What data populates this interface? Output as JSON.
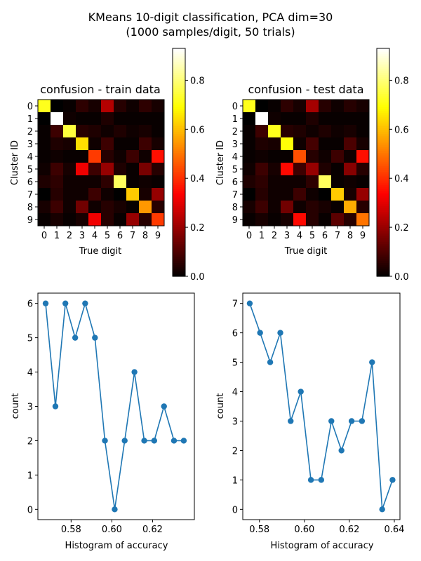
{
  "figure": {
    "title_line1": "KMeans 10-digit classification, PCA dim=30",
    "title_line2": "(1000 samples/digit, 50 trials)"
  },
  "colors": {
    "line": "#1f77b4",
    "colormap": "hot",
    "axis": "#000000",
    "background": "#ffffff"
  },
  "chart_data": [
    {
      "type": "heatmap",
      "title": "confusion - train data",
      "xlabel": "True digit",
      "ylabel": "Cluster ID",
      "x_ticks": [
        "0",
        "1",
        "2",
        "3",
        "4",
        "5",
        "6",
        "7",
        "8",
        "9"
      ],
      "y_ticks": [
        "0",
        "1",
        "2",
        "3",
        "4",
        "5",
        "6",
        "7",
        "8",
        "9"
      ],
      "values": [
        [
          0.72,
          0.0,
          0.01,
          0.06,
          0.03,
          0.24,
          0.05,
          0.02,
          0.06,
          0.03
        ],
        [
          0.0,
          0.93,
          0.02,
          0.01,
          0.01,
          0.04,
          0.01,
          0.01,
          0.01,
          0.01
        ],
        [
          0.01,
          0.08,
          0.75,
          0.05,
          0.04,
          0.02,
          0.04,
          0.02,
          0.03,
          0.01
        ],
        [
          0.01,
          0.04,
          0.03,
          0.65,
          0.02,
          0.08,
          0.01,
          0.01,
          0.08,
          0.03
        ],
        [
          0.01,
          0.02,
          0.01,
          0.01,
          0.42,
          0.05,
          0.02,
          0.08,
          0.02,
          0.36
        ],
        [
          0.02,
          0.08,
          0.03,
          0.32,
          0.08,
          0.2,
          0.04,
          0.01,
          0.16,
          0.05
        ],
        [
          0.04,
          0.06,
          0.02,
          0.02,
          0.02,
          0.06,
          0.78,
          0.01,
          0.02,
          0.01
        ],
        [
          0.0,
          0.05,
          0.02,
          0.02,
          0.08,
          0.02,
          0.0,
          0.62,
          0.03,
          0.2
        ],
        [
          0.03,
          0.08,
          0.02,
          0.15,
          0.02,
          0.05,
          0.03,
          0.01,
          0.55,
          0.05
        ],
        [
          0.01,
          0.03,
          0.01,
          0.03,
          0.32,
          0.05,
          0.01,
          0.2,
          0.05,
          0.42
        ]
      ],
      "colorbar": {
        "range": [
          0,
          0.93
        ],
        "ticks": [
          0.0,
          0.2,
          0.4,
          0.6,
          0.8
        ]
      }
    },
    {
      "type": "heatmap",
      "title": "confusion - test data",
      "xlabel": "True digit",
      "ylabel": "Cluster ID",
      "x_ticks": [
        "0",
        "1",
        "2",
        "3",
        "4",
        "5",
        "6",
        "7",
        "8",
        "9"
      ],
      "y_ticks": [
        "0",
        "1",
        "2",
        "3",
        "4",
        "5",
        "6",
        "7",
        "8",
        "9"
      ],
      "values": [
        [
          0.72,
          0.0,
          0.01,
          0.06,
          0.03,
          0.22,
          0.05,
          0.02,
          0.05,
          0.03
        ],
        [
          0.0,
          0.93,
          0.02,
          0.01,
          0.01,
          0.04,
          0.01,
          0.01,
          0.01,
          0.01
        ],
        [
          0.01,
          0.08,
          0.72,
          0.05,
          0.04,
          0.02,
          0.04,
          0.02,
          0.03,
          0.01
        ],
        [
          0.01,
          0.04,
          0.03,
          0.7,
          0.02,
          0.09,
          0.01,
          0.01,
          0.1,
          0.03
        ],
        [
          0.01,
          0.02,
          0.01,
          0.01,
          0.45,
          0.05,
          0.02,
          0.08,
          0.02,
          0.36
        ],
        [
          0.02,
          0.08,
          0.03,
          0.35,
          0.08,
          0.2,
          0.04,
          0.01,
          0.18,
          0.05
        ],
        [
          0.04,
          0.06,
          0.02,
          0.02,
          0.02,
          0.06,
          0.78,
          0.01,
          0.02,
          0.01
        ],
        [
          0.0,
          0.05,
          0.02,
          0.02,
          0.08,
          0.02,
          0.0,
          0.62,
          0.03,
          0.2
        ],
        [
          0.03,
          0.08,
          0.02,
          0.15,
          0.02,
          0.05,
          0.03,
          0.01,
          0.58,
          0.05
        ],
        [
          0.01,
          0.03,
          0.01,
          0.03,
          0.35,
          0.05,
          0.01,
          0.12,
          0.05,
          0.5
        ]
      ],
      "colorbar": {
        "range": [
          0,
          0.93
        ],
        "ticks": [
          0.0,
          0.2,
          0.4,
          0.6,
          0.8
        ]
      }
    },
    {
      "type": "line",
      "title": "",
      "xlabel": "Histogram of accuracy",
      "ylabel": "count",
      "x": [
        0.5675,
        0.5723,
        0.5772,
        0.582,
        0.5869,
        0.5917,
        0.5966,
        0.6014,
        0.6063,
        0.6111,
        0.6159,
        0.6208,
        0.6256,
        0.6305,
        0.6353
      ],
      "y": [
        6,
        3,
        6,
        5,
        6,
        5,
        2,
        0,
        2,
        4,
        2,
        2,
        3,
        2,
        2
      ],
      "xlim": [
        0.5637,
        0.6405
      ],
      "ylim": [
        -0.3,
        6.3
      ],
      "x_ticks": [
        0.58,
        0.6,
        0.62
      ],
      "y_ticks": [
        0,
        1,
        2,
        3,
        4,
        5,
        6
      ],
      "x_tick_labels": [
        "0.58",
        "0.60",
        "0.62"
      ],
      "marker": "o"
    },
    {
      "type": "line",
      "title": "",
      "xlabel": "Histogram of accuracy",
      "ylabel": "count",
      "x": [
        0.5757,
        0.5803,
        0.5848,
        0.5893,
        0.5939,
        0.5984,
        0.6029,
        0.6075,
        0.612,
        0.6165,
        0.621,
        0.6256,
        0.6301,
        0.6346,
        0.6392
      ],
      "y": [
        7,
        6,
        5,
        6,
        3,
        4,
        1,
        1,
        3,
        2,
        3,
        3,
        5,
        0,
        1
      ],
      "xlim": [
        0.5726,
        0.6425
      ],
      "ylim": [
        -0.35,
        7.35
      ],
      "x_ticks": [
        0.58,
        0.6,
        0.62,
        0.64
      ],
      "y_ticks": [
        0,
        1,
        2,
        3,
        4,
        5,
        6,
        7
      ],
      "x_tick_labels": [
        "0.58",
        "0.60",
        "0.62",
        "0.64"
      ],
      "marker": "o"
    }
  ]
}
